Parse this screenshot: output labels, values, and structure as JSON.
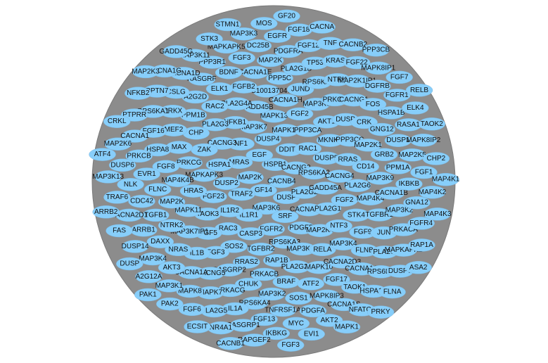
{
  "network": {
    "node_color": "#87cefa",
    "edge_color": "#808080",
    "background": "#ffffff",
    "nodes": [
      "CACNB4",
      "GF14",
      "HSPB1",
      "DUSP",
      "MAP2K",
      "CACNG2",
      "MAP3K6",
      "EGF",
      "PLA2G2",
      "TRAF2",
      "DDIT3",
      "SRF",
      "MRAS",
      "RPS6KA2",
      "IL1R1",
      "DUSP4",
      "CACNA2D2",
      "DUSP2",
      "RAC1",
      "FGFR2",
      "NF1",
      "GADD45A",
      "IL1R2",
      "MAPK14",
      "PDGFB",
      "HSPA1",
      "DUSP5",
      "CASP3",
      "MAP3K7",
      "PLA2G1",
      "FGF23",
      "PPP3CA",
      "RPS6KA3",
      "CACNG3",
      "CACNG4",
      "RAC3",
      "MAPK13",
      "MAP2K4",
      "MAPKAPK3",
      "MKNK2",
      "TGFBR2",
      "NFKB1",
      "FGF2",
      "TAOK3",
      "FGF2",
      "MAP3K14",
      "ZAK",
      "RRAS",
      "SOS2",
      "GADD45B",
      "NTF3",
      "HRAS",
      "AKT1",
      "RAP1B",
      "PLA2G3",
      "PLA2G6",
      "FGF5",
      "CACNA1H",
      "RELA",
      "PRKCG",
      "PPP3CC",
      "RRAS2",
      "PLA2G4A",
      "STK4",
      "MAPK11",
      "MAP3K3",
      "PLA2G2F",
      "CHP",
      "CD14",
      "FGF3",
      "LOC100137047",
      "MAP3K4",
      "MAP4K4B",
      "DUSP",
      "PRKACB",
      "RAC2",
      "MAP4K4",
      "MAP3K7IP1",
      "JUND",
      "MAPK10",
      "MAX",
      "MAP2K1",
      "RASGRP2",
      "FGFB2",
      "FGF9",
      "MAP2K",
      "PRKCA",
      "BRAF",
      "PPM1B",
      "MAP3K9",
      "IL1B",
      "PPP5C",
      "CACNA2D3",
      "FGF8",
      "CRK",
      "CHUK",
      "ELK1",
      "TGFBR1",
      "NTRK2",
      "RPS6KA5",
      "ATF2",
      "MEF2",
      "GRB2",
      "CACNG5",
      "CACNA1E",
      "FLNB",
      "FLNC",
      "CACNG1",
      "MAP3K2",
      "A2G2D",
      "CACNA1B",
      "NRAS",
      "PLA2G1B",
      "FGF17",
      "HSPA8",
      "GNG12",
      "PRKACG",
      "BDNF",
      "JUN",
      "TGFB1",
      "NTRK",
      "SOS1",
      "PRKX",
      "PPM1A",
      "CACNA1A",
      "MAP2K",
      "CACNA1C",
      "EVR1",
      "FOS",
      "RPS6KA4",
      "RASGRF",
      "MAP3K2",
      "DAXX",
      "TP53",
      "MAPK8IP3",
      "FGF16",
      "DUSP1",
      "MAPK7",
      "FGF3",
      "PLA2G",
      "CDC42",
      "MAP2K1IP1",
      "TNFRSF1A",
      "CSLG",
      "IKBKB",
      "AKT3",
      "PDGFRA",
      "TAOK1",
      "PRKCB",
      "HSPA1B",
      "IL1A",
      "PPP3R1",
      "PRKACA",
      "ARRB1",
      "KRAS",
      "PDGFA",
      "RPS6KA1",
      "MAP2K5",
      "MAPK8",
      "DC25B",
      "RPS6KA",
      "NLK",
      "DGFRB",
      "FGF13",
      "CACNA1D",
      "GNA12",
      "MAP3K4",
      "FGF12",
      "CACNA1S",
      "CACNA1",
      "RASA1",
      "PLA2G5",
      "MAPKAPK5",
      "MAPKAPK2",
      "CACNA2D1",
      "FGF22",
      "MYC",
      "RPTN7",
      "FGF1",
      "MAP3K1",
      "EGFR",
      "HSPA1A",
      "DUSP6",
      "FGFR1",
      "RASGRP1",
      "MAP3K11",
      "FGFR4",
      "DUSP14",
      "TNF",
      "AKT2",
      "PTPRR",
      "MAPK8IP2",
      "FGF6",
      "MAP3K3",
      "DUSP7",
      "TRAF6",
      "MAPK8IP1",
      "IKBKG",
      "CACNA1G",
      "MAP4K2",
      "A2G12A",
      "FGF18",
      "NFATC4",
      "MAP2K6",
      "ELK4",
      "NR4A1",
      "STK3",
      "RAP1A",
      "FAS",
      "CACNB2",
      "EVI1",
      "NFKB2",
      "CHP2",
      "PAK2",
      "MOS",
      "FLNA",
      "MAP3K13",
      "FGF7",
      "RAPGEF2",
      "GADD45G",
      "MAP4K3",
      "DUSP",
      "CACNA",
      "MAPK1",
      "CRKL",
      "TAOK2",
      "ECSIT",
      "STMN1",
      "ASA2",
      "ARRB2",
      "PPP3CB",
      "FGF3",
      "MAP2K3",
      "MAP4K1",
      "PAK1",
      "GF20",
      "PRKY",
      "ATF4",
      "RELB",
      "CACNB1"
    ]
  }
}
